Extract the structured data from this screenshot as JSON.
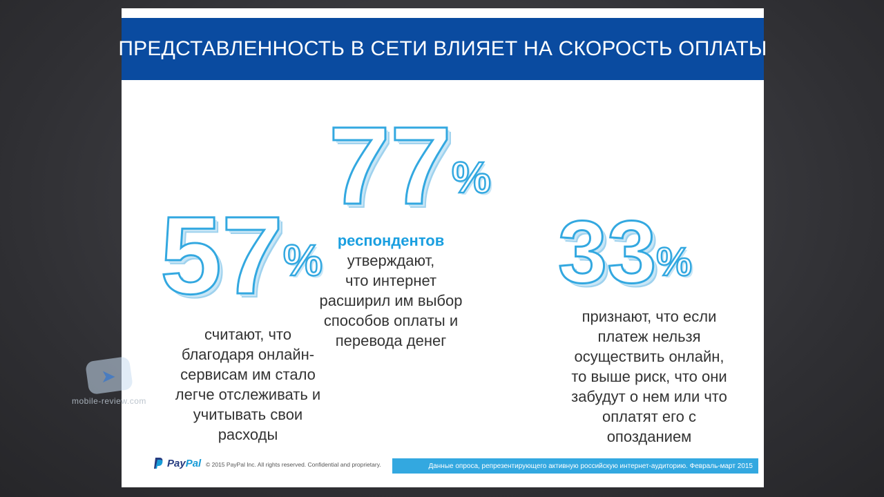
{
  "slide": {
    "title": "ПРЕДСТАВЛЕННОСТЬ В СЕТИ ВЛИЯЕТ НА СКОРОСТЬ ОПЛАТЫ",
    "stats": [
      {
        "number": "57",
        "percent": "%",
        "description_lines": [
          "считают, что",
          "благодаря онлайн-",
          "сервисам им стало",
          "легче отслеживать и",
          "учитывать свои",
          "расходы"
        ]
      },
      {
        "number": "77",
        "percent": "%",
        "highlight": "респондентов",
        "description_lines": [
          "утверждают,",
          "что интернет",
          "расширил им выбор",
          "способов оплаты и",
          "перевода денег"
        ]
      },
      {
        "number": "33",
        "percent": "%",
        "description_lines": [
          "признают, что если",
          "платеж нельзя",
          "осуществить онлайн,",
          "то выше риск, что они",
          "забудут о нем или что",
          "оплатят его с",
          "опозданием"
        ]
      }
    ],
    "footer": {
      "logo_part1": "Pay",
      "logo_part2": "Pal",
      "copyright": "© 2015 PayPal Inc. All rights reserved. Confidential and proprietary.",
      "survey_note": "Данные опроса, репрезентирующего активную российскую интернет-аудиторию. Февраль-март 2015"
    }
  },
  "watermark": {
    "text": "mobile-review.com"
  },
  "colors": {
    "title_bar": "#0a4ba0",
    "accent": "#33a8e0",
    "highlight": "#1a9fe0",
    "background": "#2f2f33"
  }
}
